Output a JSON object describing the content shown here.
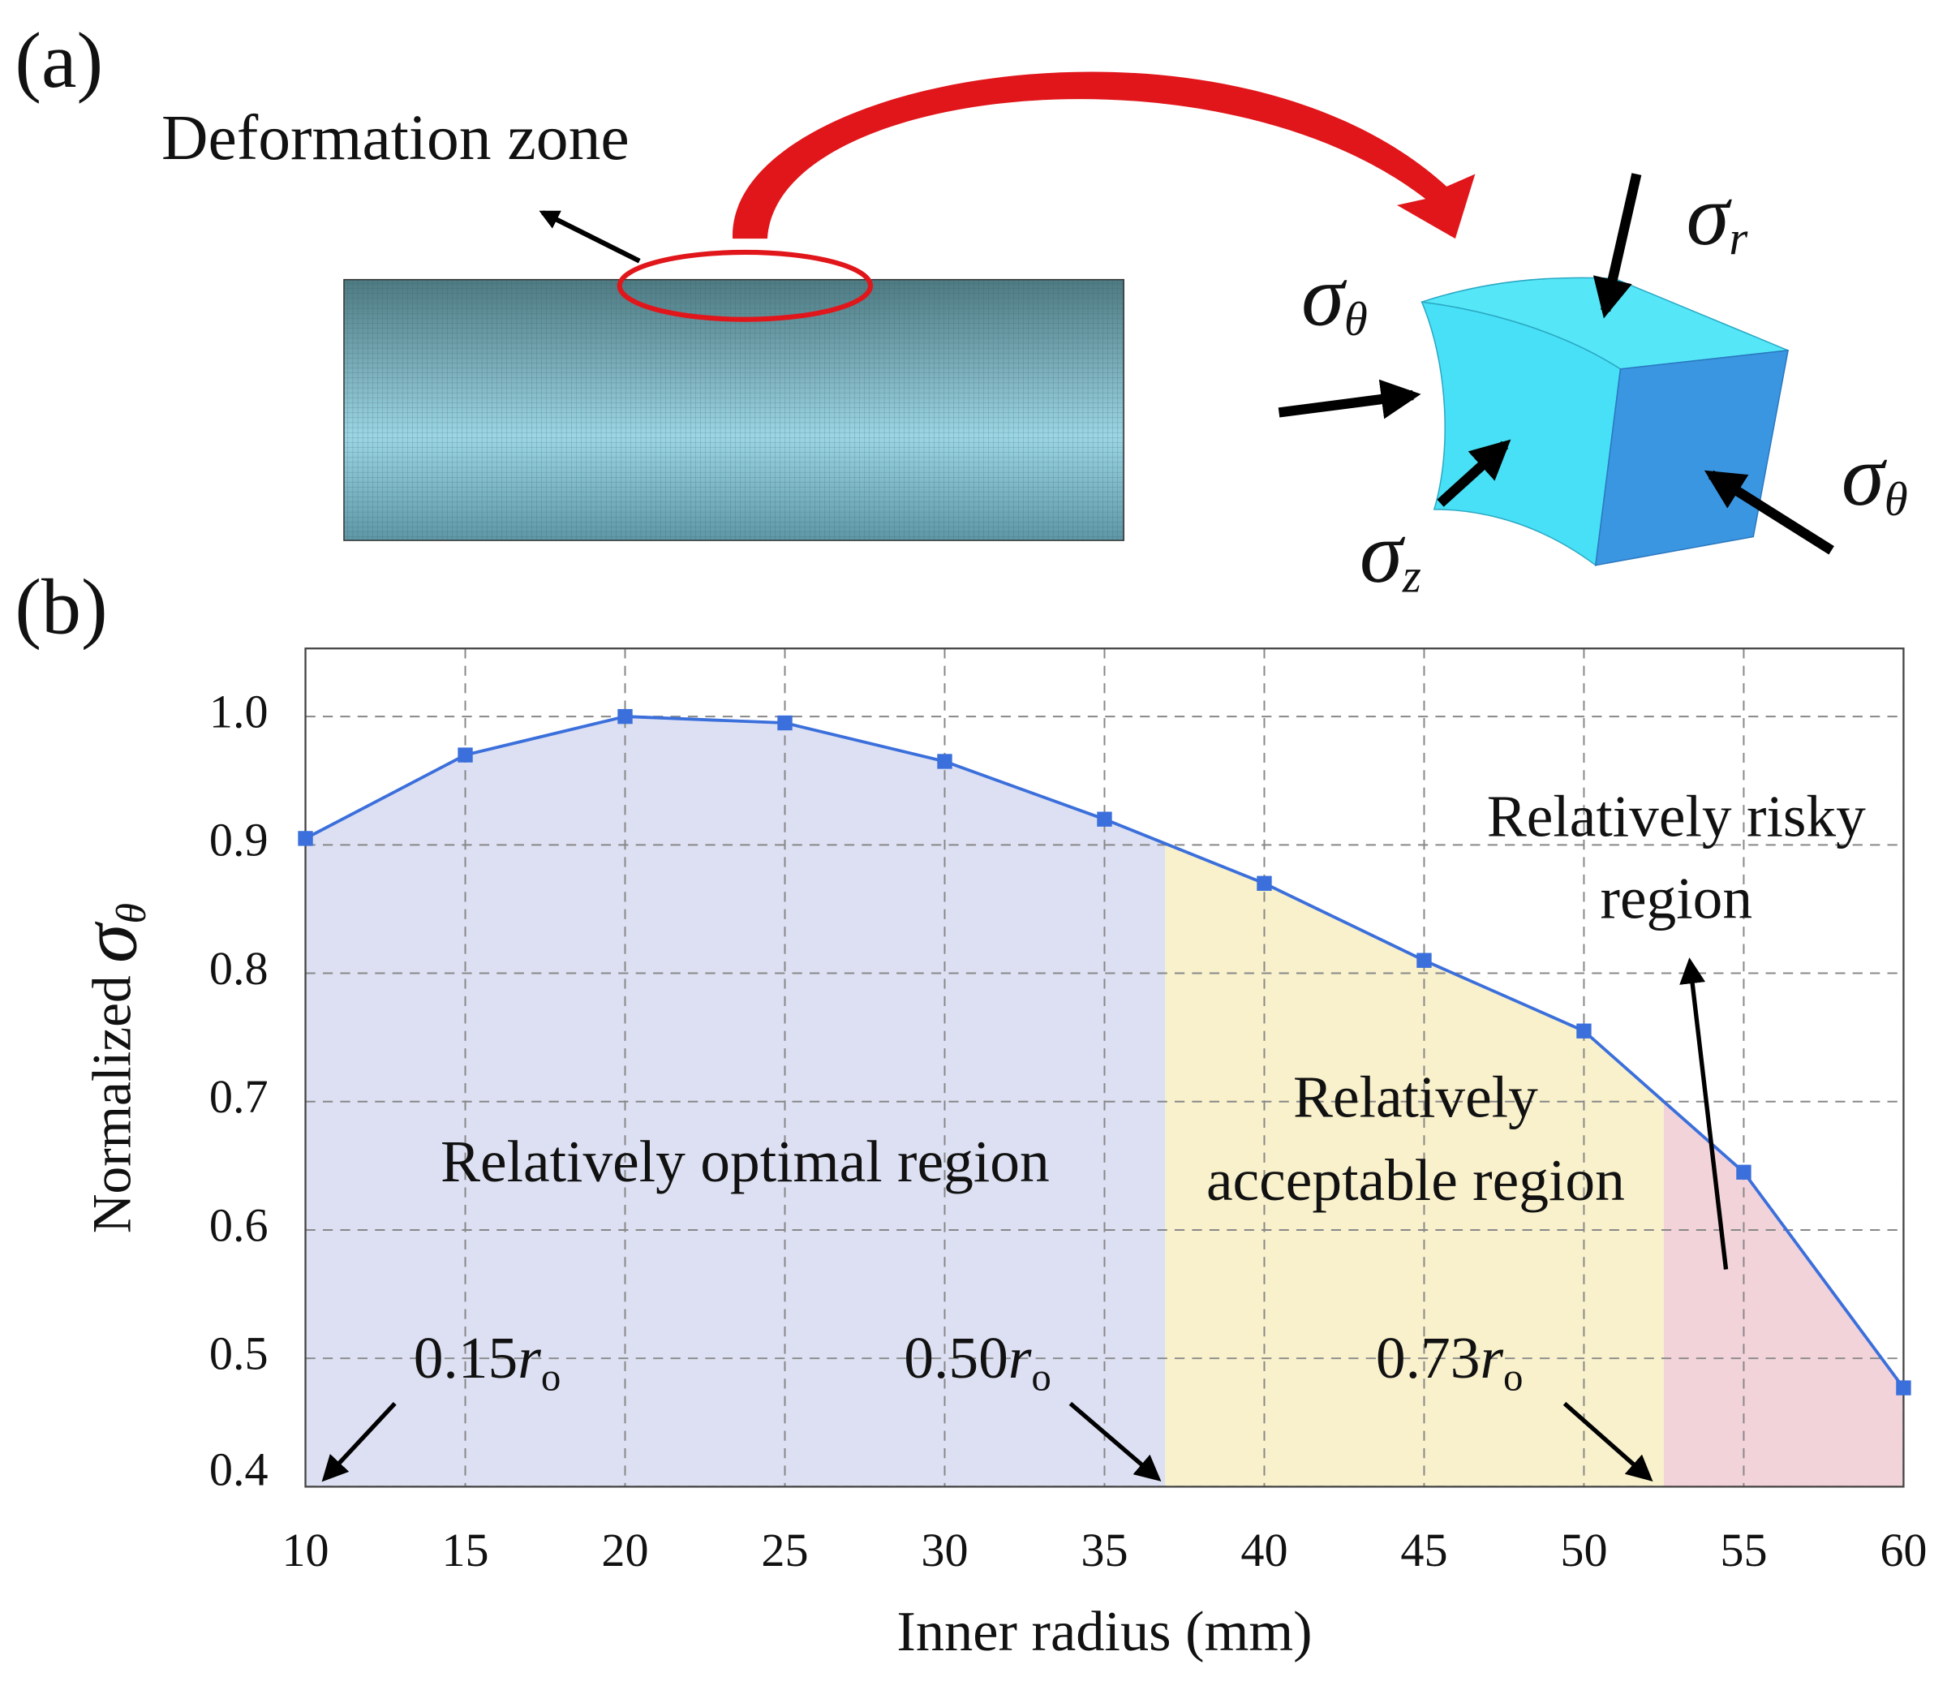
{
  "diagram": {
    "panel_label": "(a)",
    "zone_label": "Deformation zone",
    "stress_labels": [
      {
        "symbol": "σ",
        "subscript": "r"
      },
      {
        "symbol": "σ",
        "subscript": "θ"
      },
      {
        "symbol": "σ",
        "subscript": "z"
      },
      {
        "symbol": "σ",
        "subscript": "θ"
      }
    ]
  },
  "chart_data": {
    "type": "line",
    "panel_label": "(b)",
    "x_label": "Inner radius (mm)",
    "y_label": {
      "text": "Normalized",
      "symbol": "σ",
      "subscript": "θ"
    },
    "x": [
      10,
      15,
      20,
      25,
      30,
      35,
      40,
      45,
      50,
      55,
      60
    ],
    "values": [
      0.905,
      0.97,
      1.0,
      0.995,
      0.965,
      0.92,
      0.87,
      0.81,
      0.755,
      0.645,
      0.477
    ],
    "color": "#3b6fdb",
    "xlim": [
      10,
      60
    ],
    "ylim": [
      0.4,
      1.053
    ],
    "xticks": [
      10,
      15,
      20,
      25,
      30,
      35,
      40,
      45,
      50,
      55,
      60
    ],
    "yticks": [
      0.4,
      0.5,
      0.6,
      0.7,
      0.8,
      0.9,
      {
        "value": 1,
        "label": "1.0"
      }
    ],
    "grid": true,
    "regions": [
      {
        "label_lines": [
          "Relatively optimal region"
        ],
        "xrange": [
          10,
          36.9
        ],
        "color": "#dce0f2"
      },
      {
        "label_lines": [
          "Relatively",
          "acceptable region"
        ],
        "xrange": [
          36.9,
          52.5
        ],
        "color": "#f9f1cc"
      },
      {
        "label_lines": [
          "Relatively risky",
          "region"
        ],
        "xrange": [
          52.5,
          60
        ],
        "color": "#f2d3da"
      }
    ],
    "annotations": [
      {
        "coef": "0.15",
        "symbol": "r",
        "subscript": "o"
      },
      {
        "coef": "0.50",
        "symbol": "r",
        "subscript": "o"
      },
      {
        "coef": "0.73",
        "symbol": "r",
        "subscript": "o"
      }
    ]
  }
}
